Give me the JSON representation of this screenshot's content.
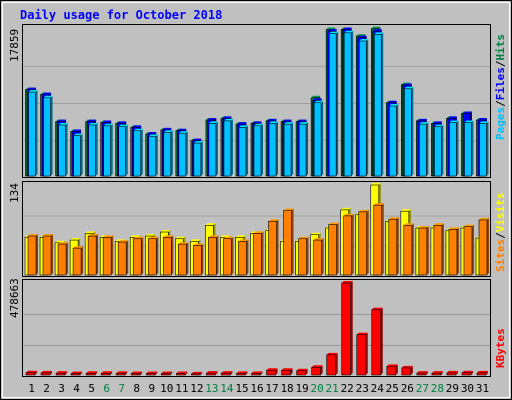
{
  "title": "Daily usage for October 2018",
  "colors": {
    "background": "#c0c0c0",
    "panel": "#c0c0c0",
    "title": "#0000ff",
    "hits": "#008040",
    "files": "#0000ff",
    "pages": "#00c0ff",
    "visits": "#ffff00",
    "sites": "#ff8000",
    "kbytes": "#ff0000",
    "weekend_label": "#008040",
    "weekday_label": "#000000"
  },
  "chart_data": [
    {
      "type": "bar",
      "panel": "hits-files-pages",
      "categories": [
        "1",
        "2",
        "3",
        "4",
        "5",
        "6",
        "7",
        "8",
        "9",
        "10",
        "11",
        "12",
        "13",
        "14",
        "15",
        "16",
        "17",
        "18",
        "19",
        "20",
        "21",
        "22",
        "23",
        "24",
        "25",
        "26",
        "27",
        "28",
        "29",
        "30",
        "31"
      ],
      "ylabel_max": "17859",
      "ylim": [
        0,
        17859
      ],
      "series": [
        {
          "name": "Hits",
          "values": [
            10500,
            9900,
            6600,
            5400,
            6600,
            6500,
            6400,
            5900,
            5100,
            5600,
            5500,
            4300,
            6800,
            7000,
            6300,
            6400,
            6700,
            6600,
            6600,
            9500,
            17800,
            17800,
            17000,
            17900,
            8900,
            11100,
            6700,
            6400,
            7000,
            7600,
            6800
          ]
        },
        {
          "name": "Files",
          "values": [
            10500,
            9900,
            6600,
            5400,
            6600,
            6500,
            6400,
            5900,
            5100,
            5600,
            5500,
            4300,
            6800,
            7000,
            6300,
            6400,
            6700,
            6600,
            6600,
            9200,
            17600,
            17800,
            16800,
            17600,
            8900,
            11000,
            6700,
            6400,
            7000,
            7600,
            6800
          ]
        },
        {
          "name": "Pages",
          "values": [
            10200,
            9500,
            6200,
            4900,
            6200,
            6100,
            6000,
            5500,
            4800,
            5300,
            5200,
            4000,
            6400,
            6700,
            5900,
            6100,
            6400,
            6300,
            6300,
            8900,
            17300,
            17400,
            16400,
            17200,
            8500,
            10600,
            6300,
            6000,
            6500,
            6500,
            6400
          ]
        }
      ],
      "legend": [
        "Pages",
        "Files",
        "Hits"
      ]
    },
    {
      "type": "bar",
      "panel": "visits-sites",
      "categories": [
        "1",
        "2",
        "3",
        "4",
        "5",
        "6",
        "7",
        "8",
        "9",
        "10",
        "11",
        "12",
        "13",
        "14",
        "15",
        "16",
        "17",
        "18",
        "19",
        "20",
        "21",
        "22",
        "23",
        "24",
        "25",
        "26",
        "27",
        "28",
        "29",
        "30",
        "31"
      ],
      "ylabel_max": "134",
      "ylim": [
        0,
        134
      ],
      "series": [
        {
          "name": "Visits",
          "values": [
            56,
            56,
            48,
            52,
            62,
            56,
            50,
            56,
            58,
            64,
            54,
            50,
            74,
            56,
            56,
            62,
            66,
            50,
            50,
            60,
            70,
            97,
            90,
            134,
            80,
            95,
            70,
            70,
            66,
            70,
            55
          ]
        },
        {
          "name": "Sites",
          "values": [
            58,
            58,
            46,
            40,
            58,
            56,
            49,
            54,
            54,
            56,
            46,
            44,
            56,
            54,
            50,
            62,
            80,
            96,
            54,
            52,
            75,
            88,
            94,
            104,
            83,
            74,
            70,
            74,
            68,
            72,
            82
          ]
        }
      ],
      "legend": [
        "Sites",
        "Visits"
      ]
    },
    {
      "type": "bar",
      "panel": "kbytes",
      "categories": [
        "1",
        "2",
        "3",
        "4",
        "5",
        "6",
        "7",
        "8",
        "9",
        "10",
        "11",
        "12",
        "13",
        "14",
        "15",
        "16",
        "17",
        "18",
        "19",
        "20",
        "21",
        "22",
        "23",
        "24",
        "25",
        "26",
        "27",
        "28",
        "29",
        "30",
        "31"
      ],
      "ylabel_max": "478663",
      "ylim": [
        0,
        478663
      ],
      "series": [
        {
          "name": "KBytes",
          "values": [
            12000,
            11000,
            9500,
            8000,
            9000,
            9000,
            8500,
            8000,
            7500,
            8000,
            8000,
            6000,
            10000,
            10000,
            8500,
            8500,
            25000,
            25000,
            22000,
            40000,
            105000,
            478663,
            210000,
            340000,
            45000,
            37000,
            10000,
            9500,
            11000,
            12000,
            11000
          ]
        }
      ],
      "legend": [
        "KBytes"
      ]
    }
  ],
  "weekend_days": [
    "6",
    "7",
    "13",
    "14",
    "20",
    "21",
    "27",
    "28"
  ]
}
